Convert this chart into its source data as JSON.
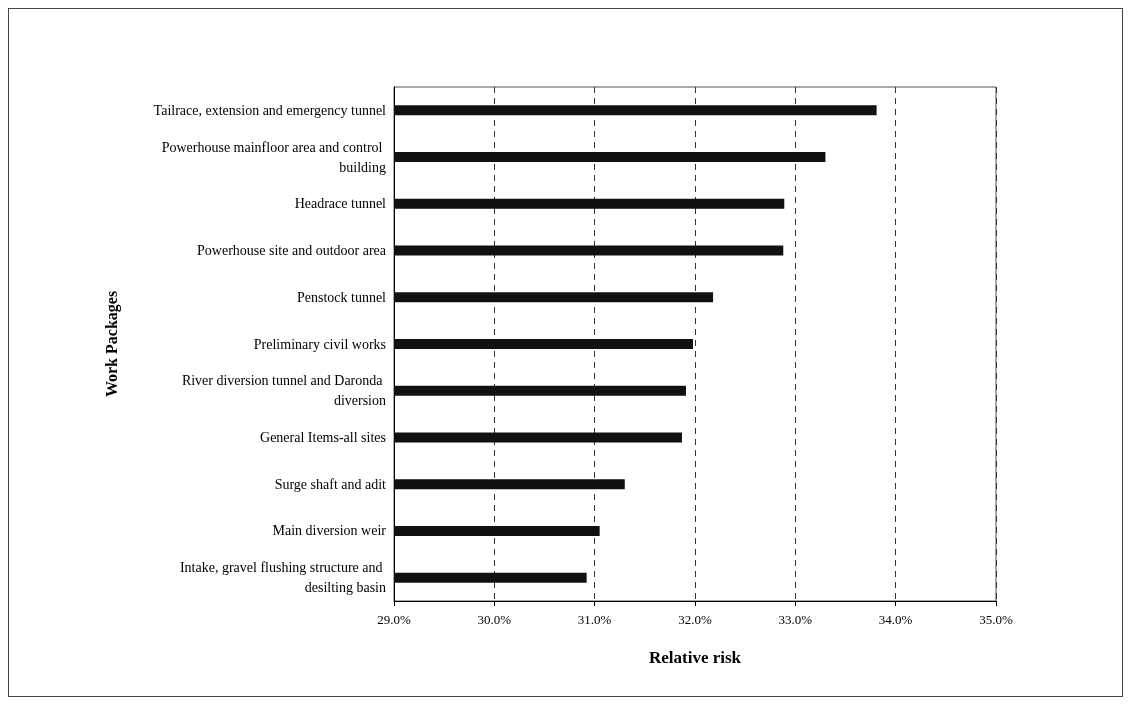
{
  "chart_data": {
    "type": "bar",
    "orientation": "horizontal",
    "xlabel": "Relative risk",
    "ylabel": "Work Packages",
    "categories": [
      "Tailrace, extension and emergency tunnel",
      "Powerhouse mainfloor area and control building",
      "Headrace tunnel",
      "Powerhouse site and outdoor area",
      "Penstock tunnel",
      "Preliminary civil works",
      "River diversion tunnel and Daronda diversion",
      "General Items-all sites",
      "Surge shaft and adit",
      "Main diversion weir",
      "Intake, gravel flushing structure and desilting basin"
    ],
    "values": [
      33.81,
      33.3,
      32.89,
      32.88,
      32.18,
      31.98,
      31.91,
      31.87,
      31.3,
      31.05,
      30.92
    ],
    "color": "#111111",
    "xlim": [
      29,
      35
    ],
    "xticks": [
      {
        "value": 29,
        "label": "29.0%"
      },
      {
        "value": 30,
        "label": "30.0%"
      },
      {
        "value": 31,
        "label": "31.0%"
      },
      {
        "value": 32,
        "label": "32.0%"
      },
      {
        "value": 33,
        "label": "33.0%"
      },
      {
        "value": 34,
        "label": "34.0%"
      },
      {
        "value": 35,
        "label": "35.0%"
      }
    ],
    "grid": "x"
  }
}
